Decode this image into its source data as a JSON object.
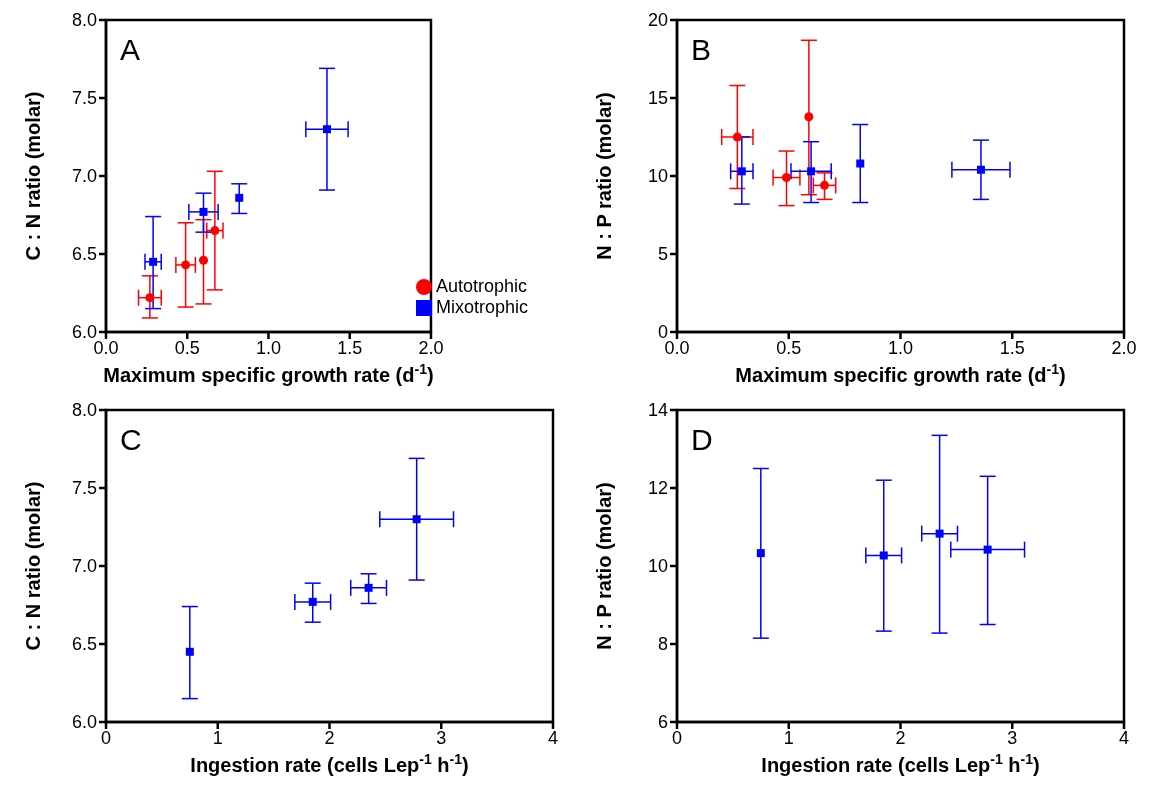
{
  "chart_data": [
    {
      "type": "scatter",
      "xlabel": "Maximum specific growth rate (d$^{-1}$)",
      "ylabel": "C : N ratio (molar)",
      "annotations": [
        "A"
      ],
      "xlim": [
        0,
        2
      ],
      "xticks": [
        {
          "value": 0,
          "label": "0.0"
        },
        {
          "value": 0.5,
          "label": "0.5"
        },
        {
          "value": 1,
          "label": "1.0"
        },
        {
          "value": 1.5,
          "label": "1.5"
        },
        {
          "value": 2,
          "label": "2.0"
        }
      ],
      "ylim": [
        6,
        8
      ],
      "yticks": [
        {
          "value": 6,
          "label": "6.0"
        },
        {
          "value": 6.5,
          "label": "6.5"
        },
        {
          "value": 7,
          "label": "7.0"
        },
        {
          "value": 7.5,
          "label": "7.5"
        },
        {
          "value": 8,
          "label": "8.0"
        }
      ],
      "legend": "bottom right",
      "grid": false,
      "series": [
        {
          "name": "Autotrophic",
          "color": "#ff0000",
          "marker": "circle",
          "x": [
            0.27,
            0.49,
            0.6,
            0.67
          ],
          "values": [
            6.22,
            6.43,
            6.46,
            6.65
          ],
          "errors": [
            [
              6.09,
              6.36
            ],
            [
              6.16,
              6.7
            ],
            [
              6.18,
              6.72
            ],
            [
              6.27,
              7.03
            ]
          ],
          "xerrors": [
            0.07,
            0.06,
            null,
            0.05
          ]
        },
        {
          "name": "Mixotrophic",
          "color": "#0000ff",
          "marker": "square",
          "x": [
            0.29,
            0.6,
            0.82,
            1.36
          ],
          "values": [
            6.45,
            6.77,
            6.86,
            7.3
          ],
          "errors": [
            [
              6.15,
              6.74
            ],
            [
              6.64,
              6.89
            ],
            [
              6.76,
              6.95
            ],
            [
              6.91,
              7.69
            ]
          ],
          "xerrors": [
            0.05,
            0.09,
            null,
            0.13
          ]
        }
      ]
    },
    {
      "type": "scatter",
      "xlabel": "Maximum specific growth rate (d$^{-1}$)",
      "ylabel": "N : P ratio (molar)",
      "annotations": [
        "B"
      ],
      "xlim": [
        0,
        2
      ],
      "xticks": [
        {
          "value": 0,
          "label": "0.0"
        },
        {
          "value": 0.5,
          "label": "0.5"
        },
        {
          "value": 1,
          "label": "1.0"
        },
        {
          "value": 1.5,
          "label": "1.5"
        },
        {
          "value": 2,
          "label": "2.0"
        }
      ],
      "ylim": [
        0,
        20
      ],
      "yticks": [
        0,
        5,
        10,
        15,
        20
      ],
      "grid": false,
      "series": [
        {
          "color": "#ff0000",
          "marker": "circle",
          "x": [
            0.27,
            0.49,
            0.59,
            0.66
          ],
          "values": [
            12.5,
            9.9,
            13.8,
            9.4
          ],
          "errors": [
            [
              9.2,
              15.8
            ],
            [
              8.1,
              11.6
            ],
            [
              8.8,
              18.7
            ],
            [
              8.5,
              10.2
            ]
          ],
          "xerrors": [
            0.07,
            0.06,
            null,
            0.05
          ]
        },
        {
          "color": "#0000ff",
          "marker": "square",
          "x": [
            0.29,
            0.6,
            0.82,
            1.36
          ],
          "values": [
            10.3,
            10.3,
            10.8,
            10.4
          ],
          "errors": [
            [
              8.2,
              12.5
            ],
            [
              8.3,
              12.2
            ],
            [
              8.3,
              13.3
            ],
            [
              8.5,
              12.3
            ]
          ],
          "xerrors": [
            0.05,
            0.09,
            null,
            0.13
          ]
        }
      ]
    },
    {
      "type": "scatter",
      "xlabel": "Ingestion rate (cells Lep$^{-1}$ h$^{-1}$)",
      "ylabel": "C : N ratio (molar)",
      "annotations": [
        "C"
      ],
      "xlim": [
        0,
        4
      ],
      "xticks": [
        0,
        1,
        2,
        3,
        4
      ],
      "ylim": [
        6,
        8
      ],
      "yticks": [
        {
          "value": 6,
          "label": "6.0"
        },
        {
          "value": 6.5,
          "label": "6.5"
        },
        {
          "value": 7,
          "label": "7.0"
        },
        {
          "value": 7.5,
          "label": "7.5"
        },
        {
          "value": 8,
          "label": "8.0"
        }
      ],
      "grid": false,
      "series": [
        {
          "color": "#0000ff",
          "marker": "square",
          "x": [
            0.75,
            1.85,
            2.35,
            2.78
          ],
          "values": [
            6.45,
            6.77,
            6.86,
            7.3
          ],
          "errors": [
            [
              6.15,
              6.74
            ],
            [
              6.64,
              6.89
            ],
            [
              6.76,
              6.95
            ],
            [
              6.91,
              7.69
            ]
          ],
          "xerrors": [
            null,
            0.16,
            0.16,
            0.33
          ]
        }
      ]
    },
    {
      "type": "scatter",
      "xlabel": "Ingestion rate (cells Lep$^{-1}$ h$^{-1}$)",
      "ylabel": "N : P ratio (molar)",
      "annotations": [
        "D"
      ],
      "xlim": [
        0,
        4
      ],
      "xticks": [
        0,
        1,
        2,
        3,
        4
      ],
      "ylim": [
        6,
        14
      ],
      "yticks": [
        6,
        8,
        10,
        12,
        14
      ],
      "grid": false,
      "series": [
        {
          "color": "#0000ff",
          "marker": "square",
          "x": [
            0.75,
            1.85,
            2.35,
            2.78
          ],
          "values": [
            10.33,
            10.27,
            10.83,
            10.42
          ],
          "errors": [
            [
              8.15,
              12.5
            ],
            [
              8.33,
              12.2
            ],
            [
              8.28,
              13.35
            ],
            [
              8.5,
              12.3
            ]
          ],
          "xerrors": [
            null,
            0.16,
            0.16,
            0.33
          ]
        }
      ]
    }
  ]
}
